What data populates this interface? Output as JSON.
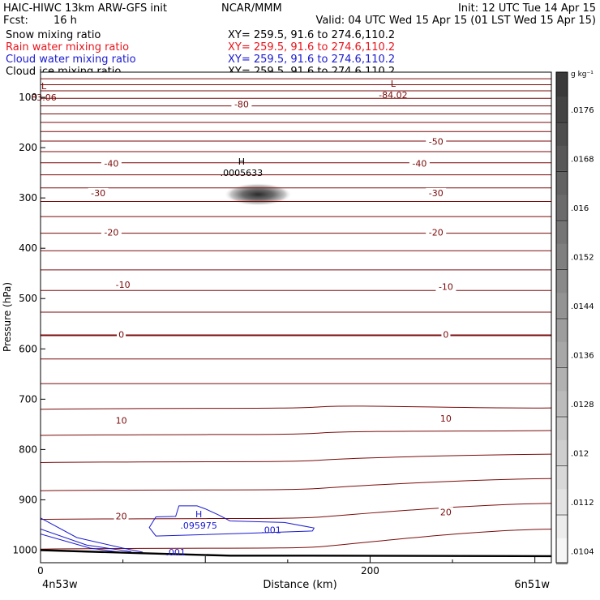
{
  "header": {
    "left_line1": "HAIC-HIWC 13km ARW-GFS init",
    "center_line1": "NCAR/MMM",
    "right_line1": "Init: 12 UTC Tue 14 Apr 15",
    "fcst_label": "Fcst:",
    "fcst_value": "16 h",
    "valid": "Valid: 04 UTC Wed 15 Apr 15 (01 LST Wed 15 Apr 15)",
    "fields": [
      {
        "name": "Snow mixing ratio",
        "xy": "XY= 259.5, 91.6 to 274.6,110.2",
        "color": "#000000"
      },
      {
        "name": "Rain water mixing ratio",
        "xy": "XY= 259.5, 91.6 to 274.6,110.2",
        "color": "#e8141c"
      },
      {
        "name": "Cloud water mixing ratio",
        "xy": "XY= 259.5, 91.6 to 274.6,110.2",
        "color": "#1a1ad0"
      },
      {
        "name": "Cloud ice mixing ratio",
        "xy": "XY= 259.5, 91.6 to 274.6,110.2",
        "color": "#000000"
      }
    ]
  },
  "chart_data": {
    "type": "contour",
    "xlabel": "Distance (km)",
    "ylabel": "Pressure (hPa)",
    "xlim": [
      0,
      310
    ],
    "ylim": [
      50,
      1025
    ],
    "x_ticks": [
      0,
      200
    ],
    "y_ticks": [
      100,
      200,
      300,
      400,
      500,
      600,
      700,
      800,
      900,
      1000
    ],
    "x_endpoints": {
      "left": "4n53w",
      "right": "6n51w"
    },
    "contour_color": "#7a0a0a",
    "cloud_water_color": "#1a1ad0",
    "isotherm_levels": [
      50,
      63,
      75,
      87,
      102,
      117,
      133,
      150,
      168,
      187,
      208,
      230,
      254,
      280,
      307,
      337,
      370,
      405,
      443,
      484,
      527,
      573,
      620,
      669,
      720,
      772,
      826,
      882,
      939,
      998
    ],
    "contour_labels": [
      {
        "text": "-80",
        "x": 122,
        "p": 114
      },
      {
        "text": "-50",
        "x": 240,
        "p": 188
      },
      {
        "text": "-40",
        "x": 43,
        "p": 231
      },
      {
        "text": "-40",
        "x": 230,
        "p": 231
      },
      {
        "text": "-30",
        "x": 35,
        "p": 290
      },
      {
        "text": "-30",
        "x": 240,
        "p": 290
      },
      {
        "text": "-20",
        "x": 43,
        "p": 368
      },
      {
        "text": "-20",
        "x": 240,
        "p": 368
      },
      {
        "text": "-10",
        "x": 50,
        "p": 472
      },
      {
        "text": "-10",
        "x": 246,
        "p": 476
      },
      {
        "text": "0",
        "x": 49,
        "p": 571
      },
      {
        "text": "0",
        "x": 246,
        "p": 571
      },
      {
        "text": "10",
        "x": 49,
        "p": 742
      },
      {
        "text": "10",
        "x": 246,
        "p": 738
      },
      {
        "text": "20",
        "x": 49,
        "p": 932
      },
      {
        "text": "20",
        "x": 246,
        "p": 924
      }
    ],
    "extrema": [
      {
        "kind": "L",
        "value": "83.06",
        "x": 2,
        "p": 95
      },
      {
        "kind": "L",
        "value": "-84.02",
        "x": 214,
        "p": 90
      },
      {
        "kind": "H",
        "value": ".0005633",
        "x": 122,
        "p": 245
      },
      {
        "kind": "H",
        "value": ".095975",
        "x": 96,
        "p": 946
      }
    ],
    "cloud_water_labels": [
      {
        "text": ".001",
        "x": 140,
        "p": 960
      },
      {
        "text": ".001",
        "x": 82,
        "p": 1004
      }
    ],
    "snow_max": {
      "x": 132,
      "p": 293
    },
    "colorbar": {
      "unit": "g kg⁻¹",
      "ticks": [
        ".0176",
        ".0168",
        ".016",
        ".0152",
        ".0144",
        ".0136",
        ".0128",
        ".012",
        ".0112",
        ".0104"
      ],
      "top_color": "#3a3a3a",
      "bottom_color": "#f6f6f6"
    }
  }
}
